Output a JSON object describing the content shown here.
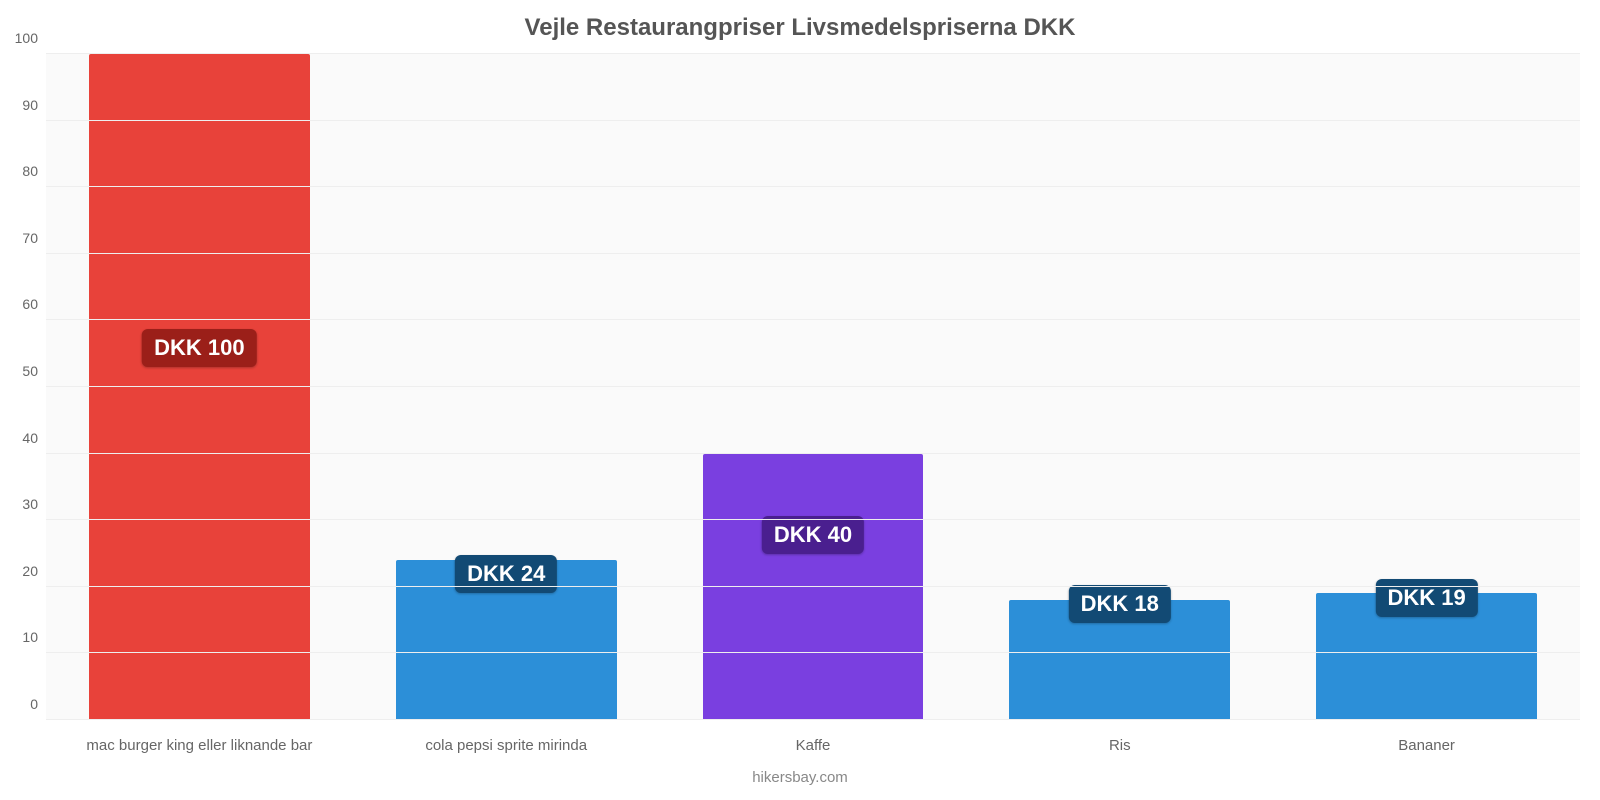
{
  "chart": {
    "type": "bar",
    "title": "Vejle Restaurangpriser Livsmedelspriserna DKK",
    "title_fontsize": 24,
    "title_color": "#555555",
    "source": "hikersbay.com",
    "source_color": "#888888",
    "background_color": "#ffffff",
    "plot_background_color": "#fafafa",
    "grid_color": "#eeeeee",
    "axis_label_color": "#666666",
    "axis_label_fontsize": 14,
    "ylim": [
      0,
      100
    ],
    "ytick_step": 10,
    "yticks": [
      0,
      10,
      20,
      30,
      40,
      50,
      60,
      70,
      80,
      90,
      100
    ],
    "bar_width": 0.72,
    "value_label_fontsize": 22,
    "value_label_color": "#ffffff",
    "categories": [
      "mac burger king eller liknande bar",
      "cola pepsi sprite mirinda",
      "Kaffe",
      "Ris",
      "Bananer"
    ],
    "values": [
      100,
      24,
      40,
      18,
      19
    ],
    "value_labels": [
      "DKK 100",
      "DKK 24",
      "DKK 40",
      "DKK 18",
      "DKK 19"
    ],
    "bar_colors": [
      "#e8423a",
      "#2c8fd8",
      "#7a3fe0",
      "#2c8fd8",
      "#2c8fd8"
    ],
    "badge_colors": [
      "#9b1f19",
      "#124a74",
      "#4a1f8f",
      "#124a74",
      "#124a74"
    ],
    "badge_y_ratio": [
      0.53,
      0.19,
      0.25,
      0.145,
      0.155
    ]
  }
}
